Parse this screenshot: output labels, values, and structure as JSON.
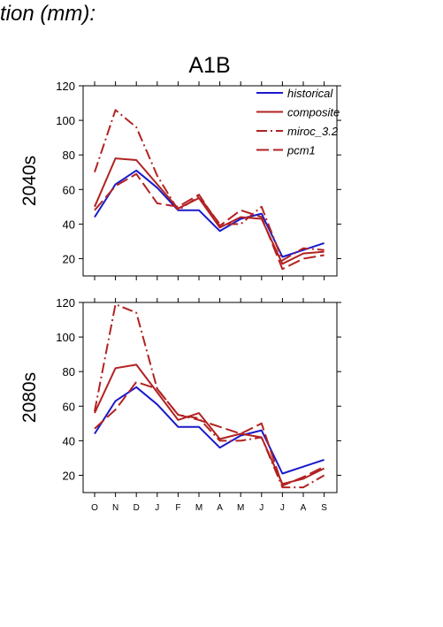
{
  "figure": {
    "header_text": "tion (mm):",
    "scenario_title": "A1B"
  },
  "legend": {
    "items": [
      {
        "label": "historical",
        "color": "#1a1acc",
        "dash": "solid"
      },
      {
        "label": "composite",
        "color": "#b22222",
        "dash": "solid"
      },
      {
        "label": "miroc_3.2",
        "color": "#b22222",
        "dash": "dashdot"
      },
      {
        "label": "pcm1",
        "color": "#b22222",
        "dash": "dashed"
      }
    ]
  },
  "chart_data": [
    {
      "type": "line",
      "title": "A1B",
      "ylabel": "2040s",
      "categories": [
        "O",
        "N",
        "D",
        "J",
        "F",
        "M",
        "A",
        "M",
        "J",
        "J",
        "A",
        "S"
      ],
      "ylim": [
        10,
        120
      ],
      "yticks": [
        20,
        40,
        60,
        80,
        100,
        120
      ],
      "legend_position": "top-right",
      "grid": false,
      "series": [
        {
          "name": "historical",
          "color": "#1a1acc",
          "dash": "solid",
          "values": [
            44,
            63,
            71,
            61,
            48,
            48,
            36,
            43,
            46,
            21,
            25,
            29
          ]
        },
        {
          "name": "composite",
          "color": "#b22222",
          "dash": "solid",
          "values": [
            50,
            78,
            77,
            63,
            49,
            55,
            38,
            44,
            43,
            17,
            23,
            24
          ]
        },
        {
          "name": "miroc_3.2",
          "color": "#b22222",
          "dash": "dashdot",
          "values": [
            70,
            106,
            96,
            68,
            48,
            56,
            40,
            40,
            50,
            19,
            26,
            25
          ]
        },
        {
          "name": "pcm1",
          "color": "#b22222",
          "dash": "dashed",
          "values": [
            48,
            62,
            69,
            52,
            50,
            57,
            39,
            48,
            44,
            14,
            20,
            22
          ]
        }
      ]
    },
    {
      "type": "line",
      "title": "",
      "ylabel": "2080s",
      "categories": [
        "O",
        "N",
        "D",
        "J",
        "F",
        "M",
        "A",
        "M",
        "J",
        "J",
        "A",
        "S"
      ],
      "ylim": [
        10,
        120
      ],
      "yticks": [
        20,
        40,
        60,
        80,
        100,
        120
      ],
      "legend_position": "",
      "grid": false,
      "series": [
        {
          "name": "historical",
          "color": "#1a1acc",
          "dash": "solid",
          "values": [
            44,
            63,
            71,
            61,
            48,
            48,
            36,
            43,
            46,
            21,
            25,
            29
          ]
        },
        {
          "name": "composite",
          "color": "#b22222",
          "dash": "solid",
          "values": [
            56,
            82,
            84,
            68,
            52,
            56,
            41,
            44,
            42,
            15,
            18,
            24
          ]
        },
        {
          "name": "miroc_3.2",
          "color": "#b22222",
          "dash": "dashdot",
          "values": [
            57,
            119,
            114,
            70,
            55,
            53,
            40,
            40,
            42,
            13,
            13,
            20
          ]
        },
        {
          "name": "pcm1",
          "color": "#b22222",
          "dash": "dashed",
          "values": [
            47,
            58,
            74,
            70,
            55,
            52,
            48,
            44,
            50,
            14,
            19,
            25
          ]
        }
      ]
    }
  ]
}
